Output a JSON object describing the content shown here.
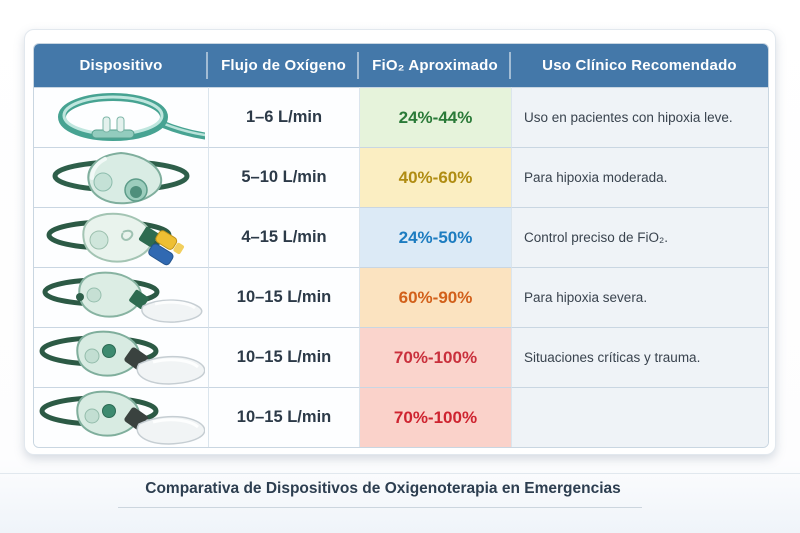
{
  "caption": {
    "text": "Comparativa de Dispositivos de Oxigenoterapia en Emergencias"
  },
  "colors": {
    "header_bg": "#4478A9",
    "header_text": "#FFFFFF",
    "grid_line": "#C9D6E2",
    "use_cell_bg": "#EFF3F7",
    "caption_text": "#2D3E50"
  },
  "table": {
    "headers": [
      "Dispositivo",
      "Flujo de Oxígeno",
      "FiO₂ Aproximado",
      "Uso Clínico Recomendado"
    ],
    "rows": [
      {
        "device_icon": "nasal-cannula-icon",
        "flow": "1–6 L/min",
        "fio2": "24%-44%",
        "fio2_bg": "#E6F3DB",
        "fio2_color": "#2A7A38",
        "use": "Uso en pacientes con hipoxia leve."
      },
      {
        "device_icon": "simple-mask-icon",
        "flow": "5–10 L/min",
        "fio2": "40%-60%",
        "fio2_bg": "#FBEEC2",
        "fio2_color": "#B08C12",
        "use": "Para hipoxia moderada."
      },
      {
        "device_icon": "venturi-mask-icon",
        "flow": "4–15 L/min",
        "fio2": "24%-50%",
        "fio2_bg": "#DCEAF6",
        "fio2_color": "#1C7CC0",
        "use": "Control preciso de FiO₂."
      },
      {
        "device_icon": "partial-rebreather-mask-icon",
        "flow": "10–15 L/min",
        "fio2": "60%-90%",
        "fio2_bg": "#FBE3C0",
        "fio2_color": "#D2601A",
        "use": "Para hipoxia severa."
      },
      {
        "device_icon": "nonrebreather-mask-icon",
        "flow": "10–15 L/min",
        "fio2": "70%-100%",
        "fio2_bg": "#FAD4CC",
        "fio2_color": "#C9303C",
        "use": "Situaciones críticas y trauma."
      },
      {
        "device_icon": "nonrebreather-mask-icon",
        "flow": "10–15 L/min",
        "fio2": "70%-100%",
        "fio2_bg": "#FAD2CA",
        "fio2_color": "#CE2430",
        "use": ""
      }
    ]
  }
}
